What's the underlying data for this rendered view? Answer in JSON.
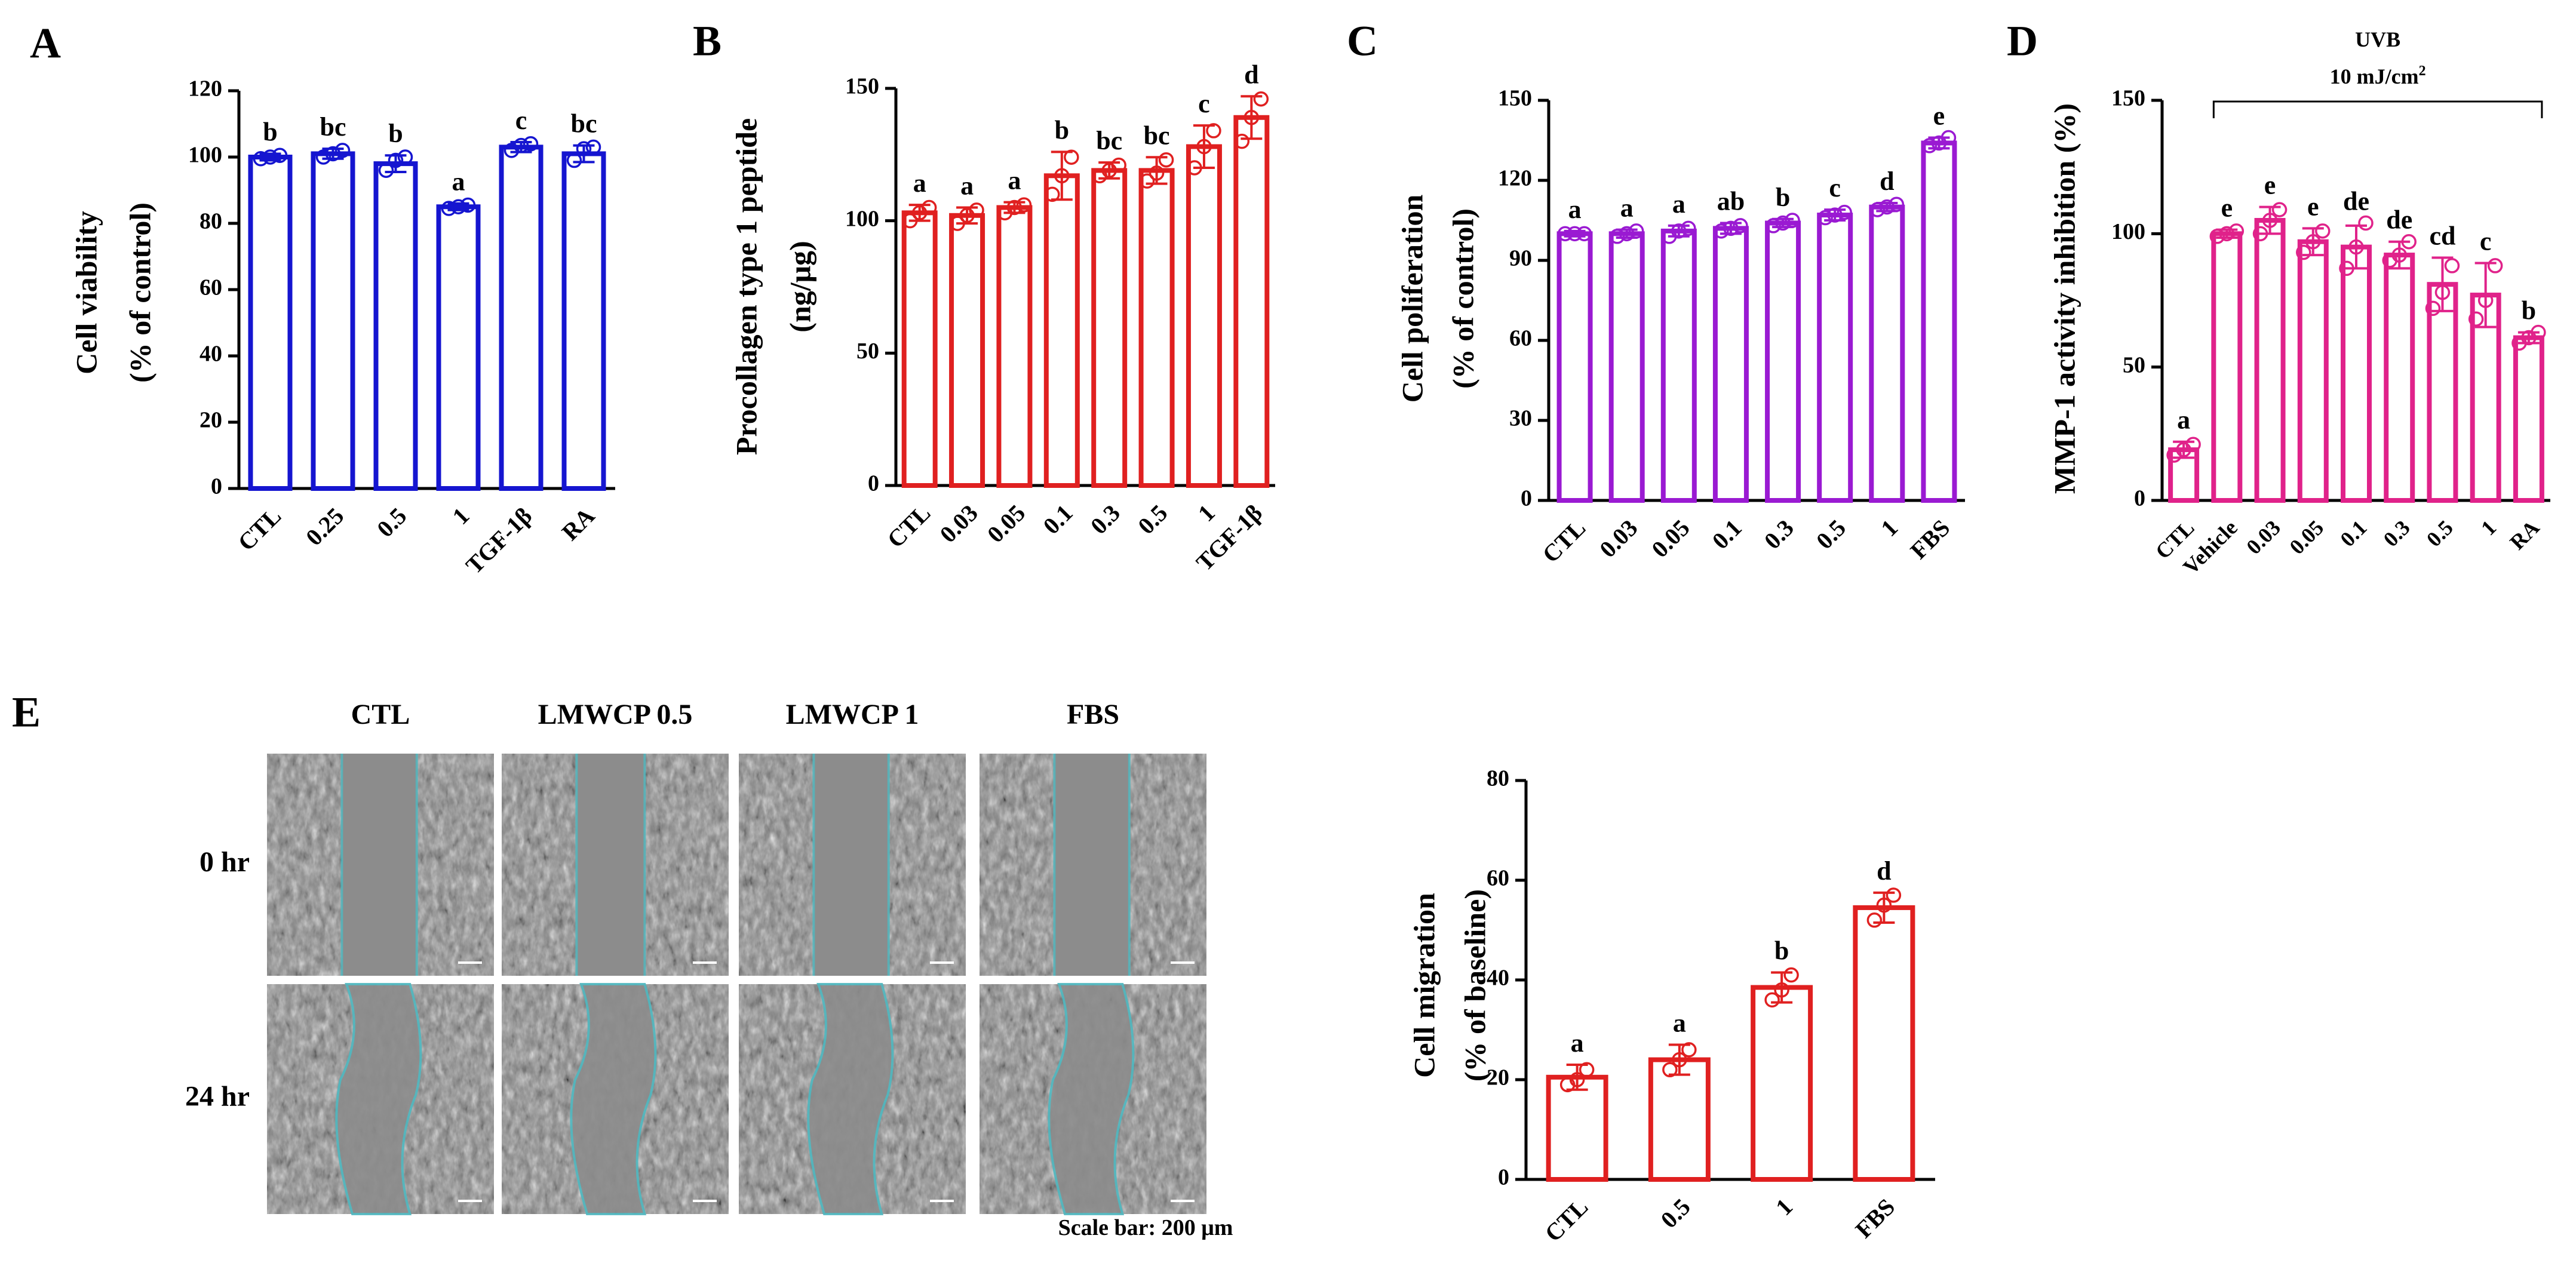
{
  "chart_data": [
    {
      "id": "A",
      "type": "bar",
      "panel_label": "A",
      "color": "#1515d0",
      "ylabel": [
        "Cell viability",
        "(% of control)"
      ],
      "xlabel": "",
      "ylim": [
        0,
        120
      ],
      "yticks": [
        0,
        20,
        40,
        60,
        80,
        100,
        120
      ],
      "categories": [
        "CTL",
        "0.25",
        "0.5",
        "1",
        "TGF-1β",
        "RA"
      ],
      "values": [
        100,
        101,
        98,
        85,
        103,
        101
      ],
      "errors": [
        1,
        1.5,
        2.5,
        1,
        1.5,
        2.5
      ],
      "points": [
        [
          99.5,
          100,
          100.5
        ],
        [
          100,
          101,
          102
        ],
        [
          96,
          99,
          100
        ],
        [
          84.5,
          85,
          85.5
        ],
        [
          102,
          103.5,
          104
        ],
        [
          99,
          102.5,
          103
        ]
      ],
      "letters": [
        "b",
        "bc",
        "b",
        "a",
        "c",
        "bc"
      ]
    },
    {
      "id": "B",
      "type": "bar",
      "panel_label": "B",
      "color": "#e02020",
      "ylabel": [
        "Procollagen type 1 peptide",
        "(ng/μg)"
      ],
      "xlabel": "",
      "ylim": [
        0,
        150
      ],
      "yticks": [
        0,
        50,
        100,
        150
      ],
      "categories": [
        "CTL",
        "0.03",
        "0.05",
        "0.1",
        "0.3",
        "0.5",
        "1",
        "TGF-1β"
      ],
      "values": [
        103,
        102,
        105,
        117,
        119,
        119,
        128,
        139
      ],
      "errors": [
        3,
        3,
        2,
        9,
        3,
        5,
        8,
        8
      ],
      "points": [
        [
          100,
          103,
          105
        ],
        [
          99,
          102,
          104
        ],
        [
          103,
          105,
          106
        ],
        [
          110,
          117,
          124
        ],
        [
          117,
          119,
          121
        ],
        [
          115,
          118,
          123
        ],
        [
          120,
          128,
          134
        ],
        [
          130,
          139,
          146
        ]
      ],
      "letters": [
        "a",
        "a",
        "a",
        "b",
        "bc",
        "bc",
        "c",
        "d"
      ]
    },
    {
      "id": "C",
      "type": "bar",
      "panel_label": "C",
      "color": "#9a1ad2",
      "ylabel": [
        "Cell poliferation",
        "(% of control)"
      ],
      "xlabel": "",
      "ylim": [
        0,
        150
      ],
      "yticks": [
        0,
        30,
        60,
        90,
        120,
        150
      ],
      "categories": [
        "CTL",
        "0.03",
        "0.05",
        "0.1",
        "0.3",
        "0.5",
        "1",
        "FBS"
      ],
      "values": [
        100,
        100,
        101,
        102,
        104,
        107,
        110,
        134
      ],
      "errors": [
        1,
        1.5,
        2,
        2,
        1.5,
        2,
        1.5,
        2
      ],
      "points": [
        [
          100,
          100,
          100
        ],
        [
          99,
          100,
          101
        ],
        [
          99,
          101,
          102
        ],
        [
          101,
          102,
          103
        ],
        [
          103,
          104,
          105
        ],
        [
          106,
          107,
          108
        ],
        [
          109,
          110,
          111
        ],
        [
          133,
          134,
          136
        ]
      ],
      "letters": [
        "a",
        "a",
        "a",
        "ab",
        "b",
        "c",
        "d",
        "e"
      ]
    },
    {
      "id": "D",
      "type": "bar",
      "panel_label": "D",
      "color": "#e0228a",
      "ylabel": [
        "MMP-1 activity inhibition (%)"
      ],
      "xlabel": "",
      "ylim": [
        0,
        150
      ],
      "yticks": [
        0,
        50,
        100,
        150
      ],
      "categories": [
        "CTL",
        "Vehicle",
        "0.03",
        "0.05",
        "0.1",
        "0.3",
        "0.5",
        "1",
        "RA"
      ],
      "values": [
        19,
        100,
        105,
        97,
        95,
        92,
        81,
        77,
        61
      ],
      "errors": [
        3,
        1.5,
        5,
        5,
        8,
        5,
        10,
        12,
        2
      ],
      "points": [
        [
          17,
          19,
          21
        ],
        [
          99,
          100,
          101
        ],
        [
          100,
          105,
          109
        ],
        [
          93,
          97,
          101
        ],
        [
          87,
          95,
          104
        ],
        [
          90,
          92,
          97
        ],
        [
          72,
          78,
          88
        ],
        [
          68,
          75,
          88
        ],
        [
          59,
          61,
          63
        ]
      ],
      "letters": [
        "a",
        "e",
        "e",
        "e",
        "de",
        "de",
        "cd",
        "c",
        "b"
      ],
      "bracket_label": [
        "UVB",
        "10 mJ/cm",
        "2"
      ]
    },
    {
      "id": "E-chart",
      "type": "bar",
      "panel_label": "E",
      "color": "#e02020",
      "ylabel": [
        "Cell migration",
        "(% of baseline)"
      ],
      "xlabel": "",
      "ylim": [
        0,
        80
      ],
      "yticks": [
        0,
        20,
        40,
        60,
        80
      ],
      "categories": [
        "CTL",
        "0.5",
        "1",
        "FBS"
      ],
      "values": [
        20.5,
        24,
        38.5,
        54.5
      ],
      "errors": [
        2.5,
        3,
        3,
        3
      ],
      "points": [
        [
          19,
          20,
          22
        ],
        [
          22,
          24,
          26
        ],
        [
          36,
          38,
          41
        ],
        [
          52,
          55,
          57
        ]
      ],
      "letters": [
        "a",
        "a",
        "b",
        "d"
      ]
    }
  ],
  "microscopy": {
    "columns": [
      "CTL",
      "LMWCP 0.5",
      "LMWCP 1",
      "FBS"
    ],
    "rows": [
      "0 hr",
      "24 hr"
    ],
    "scale_bar": "Scale bar: 200 μm"
  }
}
